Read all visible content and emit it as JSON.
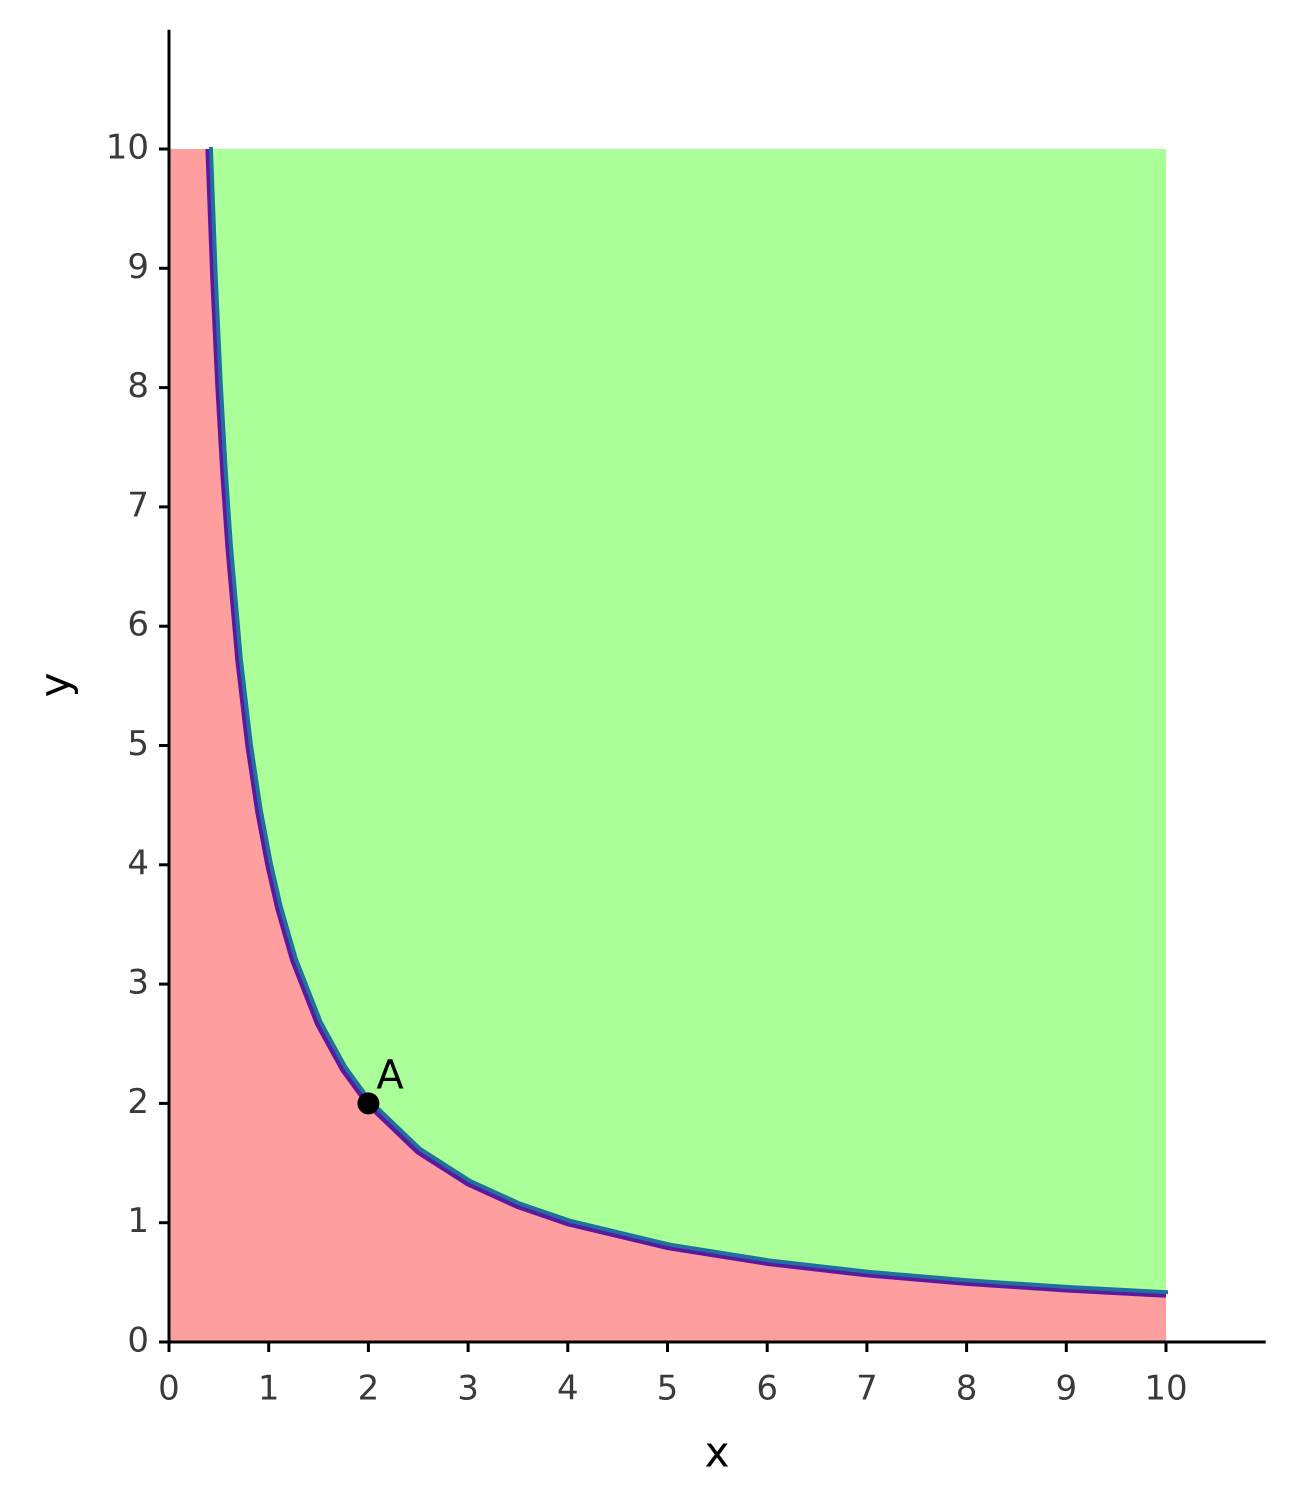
{
  "chart_data": {
    "type": "line",
    "x_label": "x",
    "y_label": "y",
    "x": [
      0.4,
      0.45,
      0.5,
      0.55,
      0.6,
      0.7,
      0.8,
      0.9,
      1,
      1.1,
      1.25,
      1.5,
      1.75,
      2,
      2.5,
      3,
      3.5,
      4,
      5,
      6,
      7,
      8,
      9,
      10
    ],
    "series": [
      {
        "color": "#5b1a9e",
        "edge_color": "#1f6fa0",
        "values": [
          10,
          8.889,
          8,
          7.273,
          6.667,
          5.714,
          5,
          4.444,
          4,
          3.636,
          3.2,
          2.667,
          2.286,
          2,
          1.6,
          1.333,
          1.143,
          1,
          0.8,
          0.667,
          0.571,
          0.5,
          0.444,
          0.4
        ]
      }
    ],
    "below_color": "#ff9e9e",
    "above_color": "#aaff99",
    "points": [
      {
        "label": "A",
        "x": 2,
        "y": 2,
        "color": "#000000"
      }
    ],
    "xlim": [
      0,
      11
    ],
    "ylim": [
      0,
      11
    ],
    "xticks": [
      0,
      1,
      2,
      3,
      4,
      5,
      6,
      7,
      8,
      9,
      10
    ],
    "yticks": [
      0,
      1,
      2,
      3,
      4,
      5,
      6,
      7,
      8,
      9,
      10
    ]
  }
}
